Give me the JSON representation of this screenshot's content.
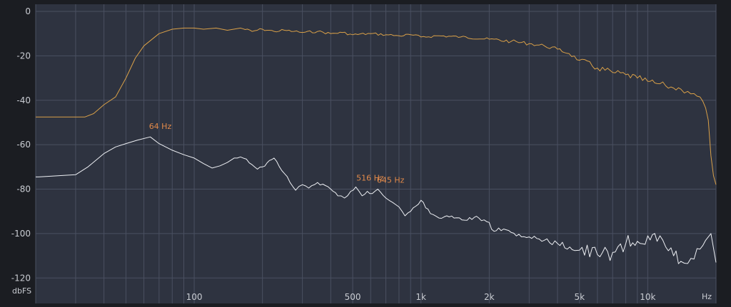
{
  "colors": {
    "background": "#1b1d22",
    "plot_background": "#2e3340",
    "grid": "#4a5061",
    "series_orange": "#d9a048",
    "series_white": "#eef0f4",
    "peak_label": "#e0894a"
  },
  "chart_data": {
    "type": "line",
    "x_scale": "log",
    "xlim": [
      20,
      20000
    ],
    "ylim": [
      -126,
      0
    ],
    "grid": true,
    "y_unit_label": "dbFS",
    "x_unit_label": "Hz",
    "y_ticks": [
      {
        "value": 0,
        "label": "0"
      },
      {
        "value": -20,
        "label": "-20"
      },
      {
        "value": -40,
        "label": "-40"
      },
      {
        "value": -60,
        "label": "-60"
      },
      {
        "value": -80,
        "label": "-80"
      },
      {
        "value": -100,
        "label": "-100"
      },
      {
        "value": -120,
        "label": "-120"
      }
    ],
    "x_ticks": [
      {
        "value": 100,
        "label": "100"
      },
      {
        "value": 500,
        "label": "500"
      },
      {
        "value": 1000,
        "label": "1k"
      },
      {
        "value": 2000,
        "label": "2k"
      },
      {
        "value": 5000,
        "label": "5k"
      },
      {
        "value": 10000,
        "label": "10k"
      }
    ],
    "peaks": [
      {
        "freq": 64,
        "db": -56.5,
        "label": "64 Hz"
      },
      {
        "freq": 516,
        "db": -79,
        "label": "516 Hz"
      },
      {
        "freq": 645,
        "db": -80,
        "label": "645 Hz"
      }
    ],
    "series": [
      {
        "id": "orange",
        "x": [
          20,
          20.6,
          22,
          24,
          26,
          28,
          30,
          33,
          36,
          40,
          45,
          50,
          55,
          60,
          70,
          80,
          90,
          100,
          110,
          125,
          140,
          160,
          180,
          200,
          225,
          250,
          275,
          300,
          350,
          400,
          450,
          500,
          600,
          700,
          800,
          900,
          1000,
          1200,
          1500,
          2000,
          2500,
          3000,
          3500,
          4000,
          4500,
          5000,
          6000,
          7000,
          8000,
          9000,
          10000,
          11000,
          12000,
          13000,
          14000,
          15000,
          16000,
          17000,
          17500,
          18000,
          18500,
          19000,
          19500,
          20000
        ],
        "y": [
          -47.5,
          -47.5,
          -47.5,
          -47.5,
          -47.5,
          -47.5,
          -47.5,
          -47.5,
          -46,
          -42,
          -38.5,
          -30,
          -21,
          -15.5,
          -10,
          -8,
          -7.5,
          -7.5,
          -8,
          -7.5,
          -8.5,
          -7.5,
          -9,
          -8,
          -9,
          -8.5,
          -9,
          -9.5,
          -9,
          -10,
          -9.5,
          -10.5,
          -10,
          -10.5,
          -11,
          -10.5,
          -11.5,
          -11,
          -11.5,
          -12.5,
          -13.5,
          -14.5,
          -15.5,
          -17,
          -19,
          -22,
          -25.5,
          -27.5,
          -28.5,
          -30,
          -31.5,
          -32.5,
          -33.5,
          -34.5,
          -35,
          -36,
          -37,
          -38.5,
          -40.5,
          -43.5,
          -49,
          -65,
          -74,
          -78
        ]
      },
      {
        "id": "white",
        "x": [
          20,
          20.6,
          30,
          34,
          40,
          45,
          50,
          56,
          64,
          70,
          80,
          90,
          100,
          110,
          120,
          130,
          140,
          150,
          160,
          170,
          180,
          190,
          200,
          225,
          250,
          280,
          300,
          320,
          350,
          400,
          430,
          460,
          490,
          516,
          550,
          580,
          610,
          645,
          700,
          750,
          800,
          850,
          900,
          1000,
          1100,
          1200,
          1300,
          1400,
          1600,
          1800,
          2000,
          2100,
          2200,
          2500,
          3000,
          3500,
          4000,
          5000,
          6000,
          7000,
          8000,
          9000,
          10000,
          11000,
          12000,
          13000,
          14000,
          15000,
          16000,
          17000,
          18000,
          19000,
          20000
        ],
        "y": [
          -74.5,
          -74.5,
          -73.5,
          -70,
          -64,
          -61,
          -59.5,
          -58,
          -56.5,
          -59.5,
          -62.5,
          -64.5,
          -66,
          -68.5,
          -70.5,
          -69.5,
          -68,
          -66,
          -65.5,
          -66.5,
          -69,
          -71,
          -70,
          -66,
          -73,
          -80.5,
          -78,
          -79.5,
          -77,
          -80,
          -83,
          -84,
          -81,
          -79,
          -83,
          -81,
          -82,
          -80,
          -84,
          -86,
          -88,
          -92,
          -90,
          -85,
          -91,
          -93,
          -92,
          -93,
          -94,
          -93,
          -95,
          -99,
          -97.5,
          -99.5,
          -101.5,
          -103,
          -104.5,
          -107.5,
          -109.5,
          -108.5,
          -104.5,
          -103.5,
          -101,
          -103.5,
          -106,
          -110,
          -112.5,
          -113.5,
          -111.5,
          -107,
          -103,
          -100,
          -113
        ]
      }
    ]
  }
}
